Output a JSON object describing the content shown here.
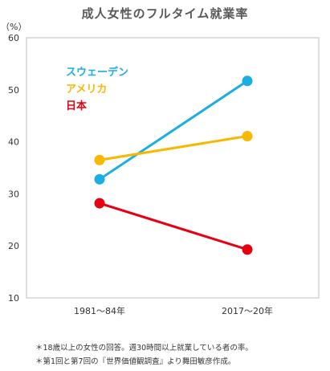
{
  "chart_data": {
    "type": "line",
    "title": "成人女性のフルタイム就業率",
    "ylabel": "（%）",
    "xlabel": "",
    "categories": [
      "1981～84年",
      "2017～20年"
    ],
    "ylim": [
      10,
      60
    ],
    "yticks": [
      "10",
      "20",
      "30",
      "40",
      "50",
      "60"
    ],
    "legend_placement": "top-left",
    "grid": false,
    "series": [
      {
        "name": "スウェーデン",
        "values": [
          32.8,
          51.7
        ],
        "color": "#1aaee3"
      },
      {
        "name": "アメリカ",
        "values": [
          36.5,
          41.1
        ],
        "color": "#f8b800"
      },
      {
        "name": "日本",
        "values": [
          28.2,
          19.3
        ],
        "color": "#e60012"
      }
    ]
  },
  "footnotes": [
    "＊18歳以上の女性の回答。週30時間以上就業している者の率。",
    "＊第1回と第7回の『世界価値観調査』より舞田敏彦作成。"
  ]
}
